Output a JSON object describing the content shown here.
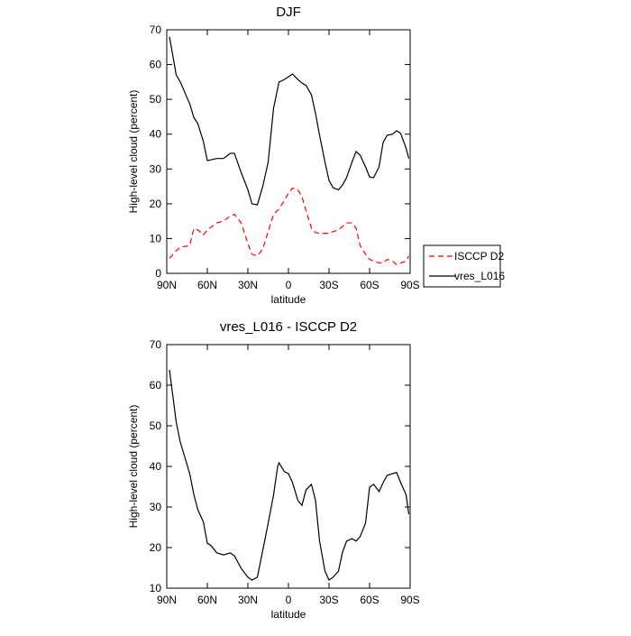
{
  "chart_data": [
    {
      "type": "line",
      "title": "DJF",
      "xlabel": "latitude",
      "ylabel": "High-level cloud (percent)",
      "x": [
        88,
        83,
        80,
        73,
        70,
        67,
        63,
        60,
        53,
        48,
        43,
        40,
        35,
        30,
        27,
        23,
        19,
        15,
        11,
        7,
        3,
        0,
        -3,
        -7,
        -10,
        -13,
        -17,
        -20,
        -23,
        -27,
        -30,
        -33,
        -37,
        -40,
        -43,
        -47,
        -50,
        -53,
        -57,
        -60,
        -63,
        -67,
        -70,
        -73,
        -77,
        -80,
        -83,
        -87,
        -89
      ],
      "series": [
        {
          "name": "ISCCP D2",
          "color": "#ff0000",
          "line_style": "dashed",
          "values": [
            4.3,
            6.5,
            7.5,
            8,
            12.8,
            12.5,
            11,
            12.5,
            14.5,
            15,
            16.5,
            17,
            14.5,
            8.5,
            5.5,
            5,
            7,
            12,
            17,
            18.5,
            21,
            23,
            24.5,
            24,
            22,
            18,
            13,
            11.7,
            11.5,
            11.5,
            11.5,
            12,
            12.5,
            13.5,
            14.5,
            14.5,
            13,
            8,
            5.5,
            4,
            3.5,
            3,
            3,
            4,
            3.5,
            2.5,
            3,
            3.5,
            5
          ]
        },
        {
          "name": "vres_L016",
          "color": "#000000",
          "line_style": "solid",
          "values": [
            68,
            57,
            55,
            48.7,
            44.8,
            43,
            38,
            32.4,
            33,
            33,
            34.5,
            34.5,
            29,
            24,
            20,
            19.7,
            25,
            32,
            47.5,
            55,
            55.7,
            56.5,
            57.3,
            55.7,
            54.7,
            54,
            51.3,
            46,
            39.7,
            32,
            26.7,
            24.6,
            24,
            25.4,
            27.5,
            32,
            35,
            34,
            30.6,
            27.7,
            27.5,
            30.6,
            37.6,
            39.7,
            40,
            41,
            40.2,
            36,
            33
          ]
        }
      ],
      "xlim": [
        90,
        -90
      ],
      "xticks": [
        {
          "value": 90,
          "label": "90N"
        },
        {
          "value": 60,
          "label": "60N"
        },
        {
          "value": 30,
          "label": "30N"
        },
        0,
        {
          "value": -30,
          "label": "30S"
        },
        {
          "value": -60,
          "label": "60S"
        },
        {
          "value": -90,
          "label": "90S"
        }
      ],
      "ylim": [
        0,
        70
      ],
      "yticks": [
        0,
        10,
        20,
        30,
        40,
        50,
        60,
        70
      ],
      "legend": "right"
    },
    {
      "type": "line",
      "title": "vres_L016 - ISCCP D2",
      "xlabel": "latitude",
      "ylabel": "High-level cloud (percent)",
      "x": [
        88,
        83,
        80,
        73,
        70,
        67,
        63,
        60,
        57,
        53,
        48,
        43,
        40,
        35,
        30,
        27,
        23,
        19,
        15,
        11,
        8,
        7,
        3,
        0,
        -3,
        -7,
        -10,
        -13,
        -17,
        -20,
        -23,
        -27,
        -30,
        -33,
        -37,
        -40,
        -43,
        -47,
        -50,
        -53,
        -57,
        -60,
        -63,
        -67,
        -70,
        -73,
        -77,
        -80,
        -83,
        -87,
        -89
      ],
      "series": [
        {
          "color": "#000000",
          "line_style": "solid",
          "values": [
            63.8,
            50.9,
            46,
            38.2,
            33.1,
            29.3,
            26.4,
            21.1,
            20.4,
            18.7,
            18.2,
            18.7,
            18,
            14.9,
            12.7,
            12,
            12.7,
            19.3,
            26,
            33,
            40,
            40.9,
            38.7,
            38.2,
            36,
            31.6,
            30.4,
            34.2,
            35.6,
            31.6,
            21.6,
            14.2,
            12,
            12.7,
            14.2,
            18.9,
            21.6,
            22.2,
            21.6,
            22.7,
            26,
            34.9,
            35.6,
            33.8,
            36,
            37.8,
            38.2,
            38.5,
            36,
            33,
            28.2
          ]
        }
      ],
      "xlim": [
        90,
        -90
      ],
      "xticks": [
        {
          "value": 90,
          "label": "90N"
        },
        {
          "value": 60,
          "label": "60N"
        },
        {
          "value": 30,
          "label": "30N"
        },
        0,
        {
          "value": -30,
          "label": "30S"
        },
        {
          "value": -60,
          "label": "60S"
        },
        {
          "value": -90,
          "label": "90S"
        }
      ],
      "ylim": [
        10,
        70
      ],
      "yticks": [
        10,
        20,
        30,
        40,
        50,
        60,
        70
      ]
    }
  ]
}
